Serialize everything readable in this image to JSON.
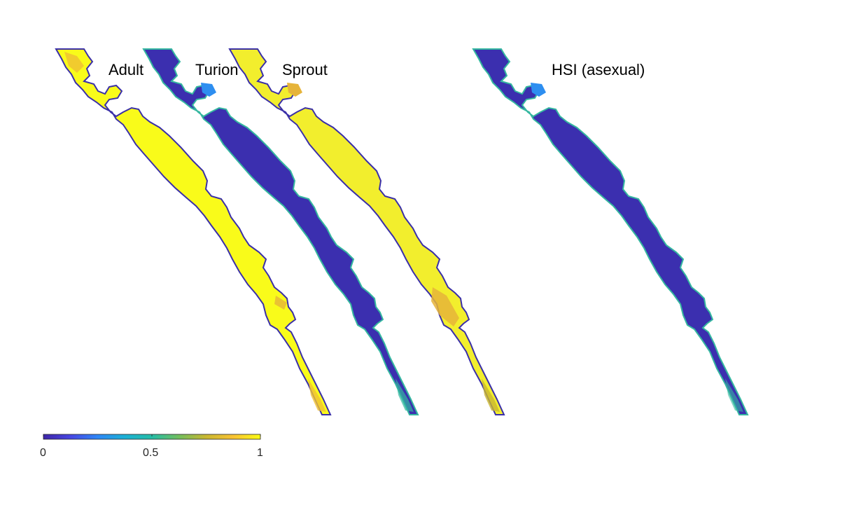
{
  "panels": [
    {
      "title": "Adult",
      "fill": "#f9fb1a",
      "edge": "#3a2fa8",
      "accent": "#f0c233"
    },
    {
      "title": "Turion",
      "fill": "#3b2faf",
      "edge": "#35b7a0",
      "accent": "#2d8ef0"
    },
    {
      "title": "Sprout",
      "fill": "#f2ee2d",
      "edge": "#3a2fa8",
      "accent": "#e6b43a"
    },
    {
      "title": "HSI (asexual)",
      "fill": "#3b2faf",
      "edge": "#35b7a0",
      "accent": "#2d8ef0"
    }
  ],
  "colorbar": {
    "ticks": [
      "0",
      "0.5",
      "1"
    ],
    "colormap": [
      "#3e26a8",
      "#4746e2",
      "#2e87f7",
      "#1bb0d5",
      "#25bda6",
      "#72be5d",
      "#c9b731",
      "#f9c232",
      "#f9fb14"
    ]
  }
}
